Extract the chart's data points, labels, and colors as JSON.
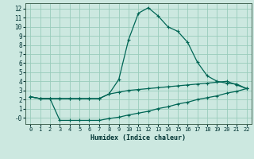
{
  "xlabel": "Humidex (Indice chaleur)",
  "background_color": "#cce8e0",
  "grid_color": "#99ccbb",
  "line_color": "#006655",
  "xlim": [
    -0.5,
    22.5
  ],
  "ylim": [
    -0.7,
    12.6
  ],
  "xticks": [
    0,
    1,
    2,
    3,
    4,
    5,
    6,
    7,
    8,
    9,
    10,
    11,
    12,
    13,
    14,
    15,
    16,
    17,
    18,
    19,
    20,
    21,
    22
  ],
  "yticks": [
    0,
    1,
    2,
    3,
    4,
    5,
    6,
    7,
    8,
    9,
    10,
    11,
    12
  ],
  "ytick_labels": [
    "-0",
    "1",
    "2",
    "3",
    "4",
    "5",
    "6",
    "7",
    "8",
    "9",
    "10",
    "11",
    "12"
  ],
  "line1_x": [
    0,
    1,
    2,
    3,
    4,
    5,
    6,
    7,
    8,
    9,
    10,
    11,
    12,
    13,
    14,
    15,
    16,
    17,
    18,
    19,
    20,
    21,
    22
  ],
  "line1_y": [
    2.3,
    2.1,
    2.1,
    2.1,
    2.1,
    2.1,
    2.1,
    2.1,
    2.6,
    4.2,
    8.6,
    11.5,
    12.1,
    11.2,
    10.0,
    9.5,
    8.3,
    6.1,
    4.6,
    4.0,
    3.8,
    3.7,
    3.2
  ],
  "line2_x": [
    0,
    1,
    2,
    3,
    4,
    5,
    6,
    7,
    8,
    9,
    10,
    11,
    12,
    13,
    14,
    15,
    16,
    17,
    18,
    19,
    20,
    21,
    22
  ],
  "line2_y": [
    2.3,
    2.1,
    2.1,
    2.1,
    2.1,
    2.1,
    2.1,
    2.1,
    2.6,
    2.8,
    3.0,
    3.1,
    3.2,
    3.3,
    3.4,
    3.5,
    3.6,
    3.7,
    3.8,
    3.9,
    4.0,
    3.6,
    3.2
  ],
  "line3_x": [
    0,
    1,
    2,
    3,
    4,
    5,
    6,
    7,
    8,
    9,
    10,
    11,
    12,
    13,
    14,
    15,
    16,
    17,
    18,
    19,
    20,
    21,
    22
  ],
  "line3_y": [
    2.3,
    2.1,
    2.1,
    -0.3,
    -0.3,
    -0.3,
    -0.3,
    -0.3,
    -0.1,
    0.05,
    0.3,
    0.5,
    0.7,
    1.0,
    1.2,
    1.5,
    1.7,
    2.0,
    2.2,
    2.4,
    2.7,
    2.9,
    3.2
  ]
}
